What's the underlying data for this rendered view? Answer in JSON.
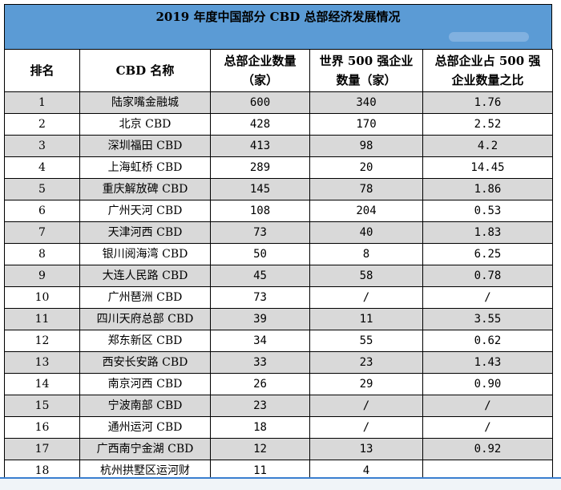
{
  "title": "2019 年度中国部分 CBD 总部经济发展情况",
  "headers": {
    "rank": "排名",
    "name": "CBD 名称",
    "hq_line1": "总部企业数量",
    "hq_line2": "（家）",
    "f500_line1": "世界 500 强企业",
    "f500_line2": "数量（家）",
    "ratio_line1": "总部企业占 500 强",
    "ratio_line2": "企业数量之比"
  },
  "rows": [
    {
      "rank": "1",
      "name": "陆家嘴金融城",
      "hq": "600",
      "f500": "340",
      "ratio": "1.76"
    },
    {
      "rank": "2",
      "name": "北京 CBD",
      "hq": "428",
      "f500": "170",
      "ratio": "2.52"
    },
    {
      "rank": "3",
      "name": "深圳福田 CBD",
      "hq": "413",
      "f500": "98",
      "ratio": "4.2"
    },
    {
      "rank": "4",
      "name": "上海虹桥 CBD",
      "hq": "289",
      "f500": "20",
      "ratio": "14.45"
    },
    {
      "rank": "5",
      "name": "重庆解放碑 CBD",
      "hq": "145",
      "f500": "78",
      "ratio": "1.86"
    },
    {
      "rank": "6",
      "name": "广州天河 CBD",
      "hq": "108",
      "f500": "204",
      "ratio": "0.53"
    },
    {
      "rank": "7",
      "name": "天津河西 CBD",
      "hq": "73",
      "f500": "40",
      "ratio": "1.83"
    },
    {
      "rank": "8",
      "name": "银川阅海湾 CBD",
      "hq": "50",
      "f500": "8",
      "ratio": "6.25"
    },
    {
      "rank": "9",
      "name": "大连人民路 CBD",
      "hq": "45",
      "f500": "58",
      "ratio": "0.78"
    },
    {
      "rank": "10",
      "name": "广州琶洲 CBD",
      "hq": "73",
      "f500": "/",
      "ratio": "/"
    },
    {
      "rank": "11",
      "name": "四川天府总部 CBD",
      "hq": "39",
      "f500": "11",
      "ratio": "3.55"
    },
    {
      "rank": "12",
      "name": "郑东新区 CBD",
      "hq": "34",
      "f500": "55",
      "ratio": "0.62"
    },
    {
      "rank": "13",
      "name": "西安长安路 CBD",
      "hq": "33",
      "f500": "23",
      "ratio": "1.43"
    },
    {
      "rank": "14",
      "name": "南京河西 CBD",
      "hq": "26",
      "f500": "29",
      "ratio": "0.90"
    },
    {
      "rank": "15",
      "name": "宁波南部 CBD",
      "hq": "23",
      "f500": "/",
      "ratio": "/"
    },
    {
      "rank": "16",
      "name": "通州运河 CBD",
      "hq": "18",
      "f500": "/",
      "ratio": "/"
    },
    {
      "rank": "17",
      "name": "广西南宁金湖 CBD",
      "hq": "12",
      "f500": "13",
      "ratio": "0.92"
    },
    {
      "rank": "18",
      "name": "杭州拱墅区运河财",
      "hq": "11",
      "f500": "4",
      "ratio": ""
    }
  ]
}
